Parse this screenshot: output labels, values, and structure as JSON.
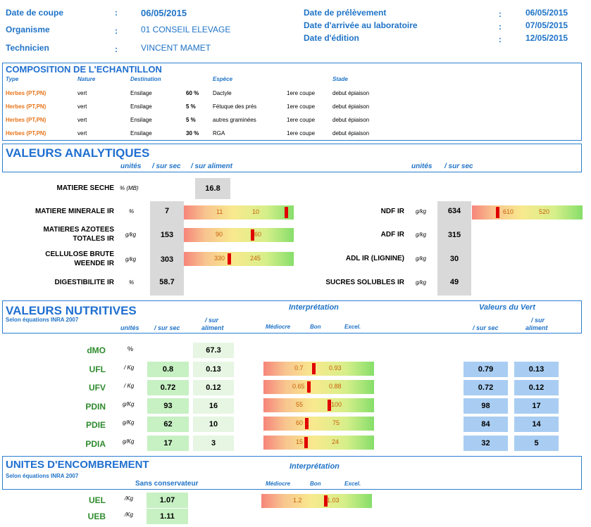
{
  "header": {
    "left": [
      {
        "label": "Date de coupe",
        "value": "06/05/2015"
      },
      {
        "label": "Organisme",
        "value": "01 CONSEIL ELEVAGE"
      },
      {
        "label": "Technicien",
        "value": "VINCENT MAMET"
      }
    ],
    "right": [
      {
        "label": "Date de prélèvement",
        "value": "06/05/2015"
      },
      {
        "label": "Date d'arrivée au laboratoire",
        "value": "07/05/2015"
      },
      {
        "label": "Date d'édition",
        "value": "12/05/2015"
      }
    ],
    "sep": ":"
  },
  "composition": {
    "title": "COMPOSITION DE L'ECHANTILLON",
    "cols": {
      "type": "Type",
      "nature": "Nature",
      "destination": "Destination",
      "espece": "Espèce",
      "stade": "Stade"
    },
    "rows": [
      {
        "type": "Herbes (PT,PN)",
        "nature": "vert",
        "destination": "Ensilage",
        "pct": "60 %",
        "espece": "Dactyle",
        "coupe": "1ere coupe",
        "stade": "debut épiaison"
      },
      {
        "type": "Herbes (PT,PN)",
        "nature": "vert",
        "destination": "Ensilage",
        "pct": "5 %",
        "espece": "Fétuque des prés",
        "coupe": "1ere coupe",
        "stade": "debut épiaison"
      },
      {
        "type": "Herbes (PT,PN)",
        "nature": "vert",
        "destination": "Ensilage",
        "pct": "5 %",
        "espece": "autres graminées",
        "coupe": "1ere coupe",
        "stade": "debut épiaison"
      },
      {
        "type": "Herbes (PT,PN)",
        "nature": "vert",
        "destination": "Ensilage",
        "pct": "30 %",
        "espece": "RGA",
        "coupe": "1ere coupe",
        "stade": "debut épiaison"
      }
    ]
  },
  "analytiques": {
    "title": "VALEURS ANALYTIQUES",
    "col_unites": "unités",
    "col_sursec": "/ sur sec",
    "col_suraliment": "/ sur aliment",
    "col_unites2": "unités",
    "col_sursec2": "/ sur sec",
    "ms": {
      "label": "MATIERE SECHE",
      "unit": "% (MB)",
      "value": "16.8"
    },
    "left": [
      {
        "label1": "MATIERE MINERALE IR",
        "label2": "",
        "unit": "%",
        "value": "7",
        "t1": "11",
        "t2": "10",
        "mark": 0.93
      },
      {
        "label1": "MATIERES AZOTEES",
        "label2": "TOTALES IR",
        "unit": "g/kg",
        "value": "153",
        "t1": "90",
        "t2": "60",
        "mark": 0.62
      },
      {
        "label1": "CELLULOSE BRUTE",
        "label2": "WEENDE IR",
        "unit": "g/kg",
        "value": "303",
        "t1": "330",
        "t2": "245",
        "mark": 0.41
      },
      {
        "label1": "DIGESTIBILITE IR",
        "label2": "",
        "unit": "%",
        "value": "58.7"
      }
    ],
    "right": [
      {
        "label": "NDF IR",
        "unit": "g/kg",
        "value": "634",
        "t1": "610",
        "t2": "520",
        "mark": 0.23
      },
      {
        "label": "ADF IR",
        "unit": "g/kg",
        "value": "315"
      },
      {
        "label": "ADL IR (LIGNINE)",
        "unit": "g/kg",
        "value": "30"
      },
      {
        "label": "SUCRES SOLUBLES IR",
        "unit": "g/kg",
        "value": "49"
      }
    ]
  },
  "nutritives": {
    "title": "VALEURS NUTRITIVES",
    "subtitle": "Selon équations INRA 2007",
    "col_unites": "unités",
    "col_sursec": "/ sur sec",
    "col_suraliment1": "/ sur",
    "col_suraliment2": "aliment",
    "interp": "Interprétation",
    "mediocre": "Médiocre",
    "bon": "Bon",
    "excel": "Excel.",
    "vert_title": "Valeurs du Vert",
    "vert_sursec": "/ sur sec",
    "vert_sur1": "/ sur",
    "vert_sur2": "aliment",
    "rows": [
      {
        "label": "dMO",
        "unit": "%",
        "sec": "",
        "ali": "67.3"
      },
      {
        "label": "UFL",
        "unit": "/ Kg",
        "sec": "0.8",
        "ali": "0.13",
        "t1": "0.7",
        "t2": "0.93",
        "mark": 0.45,
        "vsec": "0.79",
        "vali": "0.13"
      },
      {
        "label": "UFV",
        "unit": "/ Kg",
        "sec": "0.72",
        "ali": "0.12",
        "t1": "0.65",
        "t2": "0.88",
        "mark": 0.41,
        "vsec": "0.72",
        "vali": "0.12"
      },
      {
        "label": "PDIN",
        "unit": "g/Kg",
        "sec": "93",
        "ali": "16",
        "t1": "55",
        "t2": "100",
        "mark": 0.59,
        "vsec": "98",
        "vali": "17"
      },
      {
        "label": "PDIE",
        "unit": "g/Kg",
        "sec": "62",
        "ali": "10",
        "t1": "60",
        "t2": "75",
        "mark": 0.39,
        "vsec": "84",
        "vali": "14"
      },
      {
        "label": "PDIA",
        "unit": "g/Kg",
        "sec": "17",
        "ali": "3",
        "t1": "15",
        "t2": "24",
        "mark": 0.38,
        "vsec": "32",
        "vali": "5"
      }
    ]
  },
  "encombrement": {
    "title": "UNITES D'ENCOMBREMENT",
    "subtitle": "Selon équations INRA 2007",
    "col_sans": "Sans conservateur",
    "interp": "Interprétation",
    "mediocre": "Médiocre",
    "bon": "Bon",
    "excel": "Excel.",
    "rows": [
      {
        "label": "UEL",
        "unit": "/Kg",
        "value": "1.07",
        "t1": "1.2",
        "t2": "1.03",
        "mark": 0.58
      },
      {
        "label": "UEB",
        "unit": "/Kg",
        "value": "1.11"
      }
    ]
  }
}
